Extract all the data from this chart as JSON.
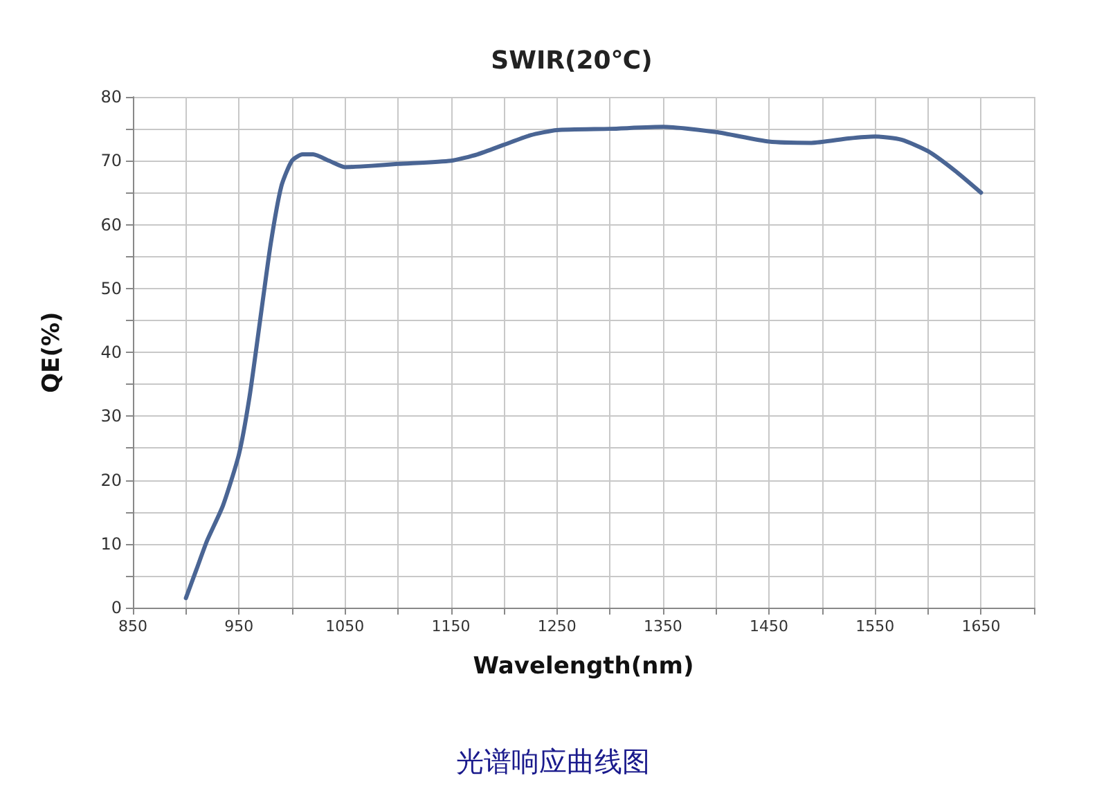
{
  "chart_data": {
    "type": "line",
    "title": "SWIR(20℃)",
    "xlabel": "Wavelength(nm)",
    "ylabel": "QE(%)",
    "annotations": [
      "光谱响应曲线图"
    ],
    "x": [
      900,
      910,
      920,
      935,
      950,
      960,
      970,
      980,
      990,
      1000,
      1010,
      1020,
      1035,
      1050,
      1075,
      1100,
      1150,
      1175,
      1200,
      1225,
      1250,
      1300,
      1350,
      1400,
      1450,
      1490,
      1525,
      1550,
      1575,
      1600,
      1625,
      1650
    ],
    "series": [
      {
        "color": "#4a6594",
        "values": [
          1.5,
          6,
          10.5,
          16,
          24,
          33,
          45,
          57,
          66,
          70,
          71,
          71,
          70,
          69,
          69.2,
          69.5,
          70,
          71,
          72.5,
          74,
          74.8,
          75,
          75.3,
          74.5,
          73,
          72.8,
          73.5,
          73.8,
          73.3,
          71.5,
          68.5,
          65
        ]
      }
    ],
    "xlim": [
      850,
      1700
    ],
    "xticks": [
      850,
      {
        "value": 900,
        "label": null
      },
      950,
      {
        "value": 1000,
        "label": null
      },
      1050,
      {
        "value": 1100,
        "label": null
      },
      1150,
      {
        "value": 1200,
        "label": null
      },
      1250,
      {
        "value": 1300,
        "label": null
      },
      1350,
      {
        "value": 1400,
        "label": null
      },
      1450,
      {
        "value": 1500,
        "label": null
      },
      1550,
      {
        "value": 1600,
        "label": null
      },
      1650,
      {
        "value": 1700,
        "label": null
      }
    ],
    "ylim": [
      0,
      80
    ],
    "yticks": [
      0,
      {
        "value": 5,
        "label": null
      },
      10,
      {
        "value": 15,
        "label": null
      },
      20,
      {
        "value": 25,
        "label": null
      },
      30,
      {
        "value": 35,
        "label": null
      },
      40,
      {
        "value": 45,
        "label": null
      },
      50,
      {
        "value": 55,
        "label": null
      },
      60,
      {
        "value": 65,
        "label": null
      },
      70,
      {
        "value": 75,
        "label": null
      },
      80
    ],
    "grid": true,
    "marker": "none",
    "line_style": "solid"
  }
}
